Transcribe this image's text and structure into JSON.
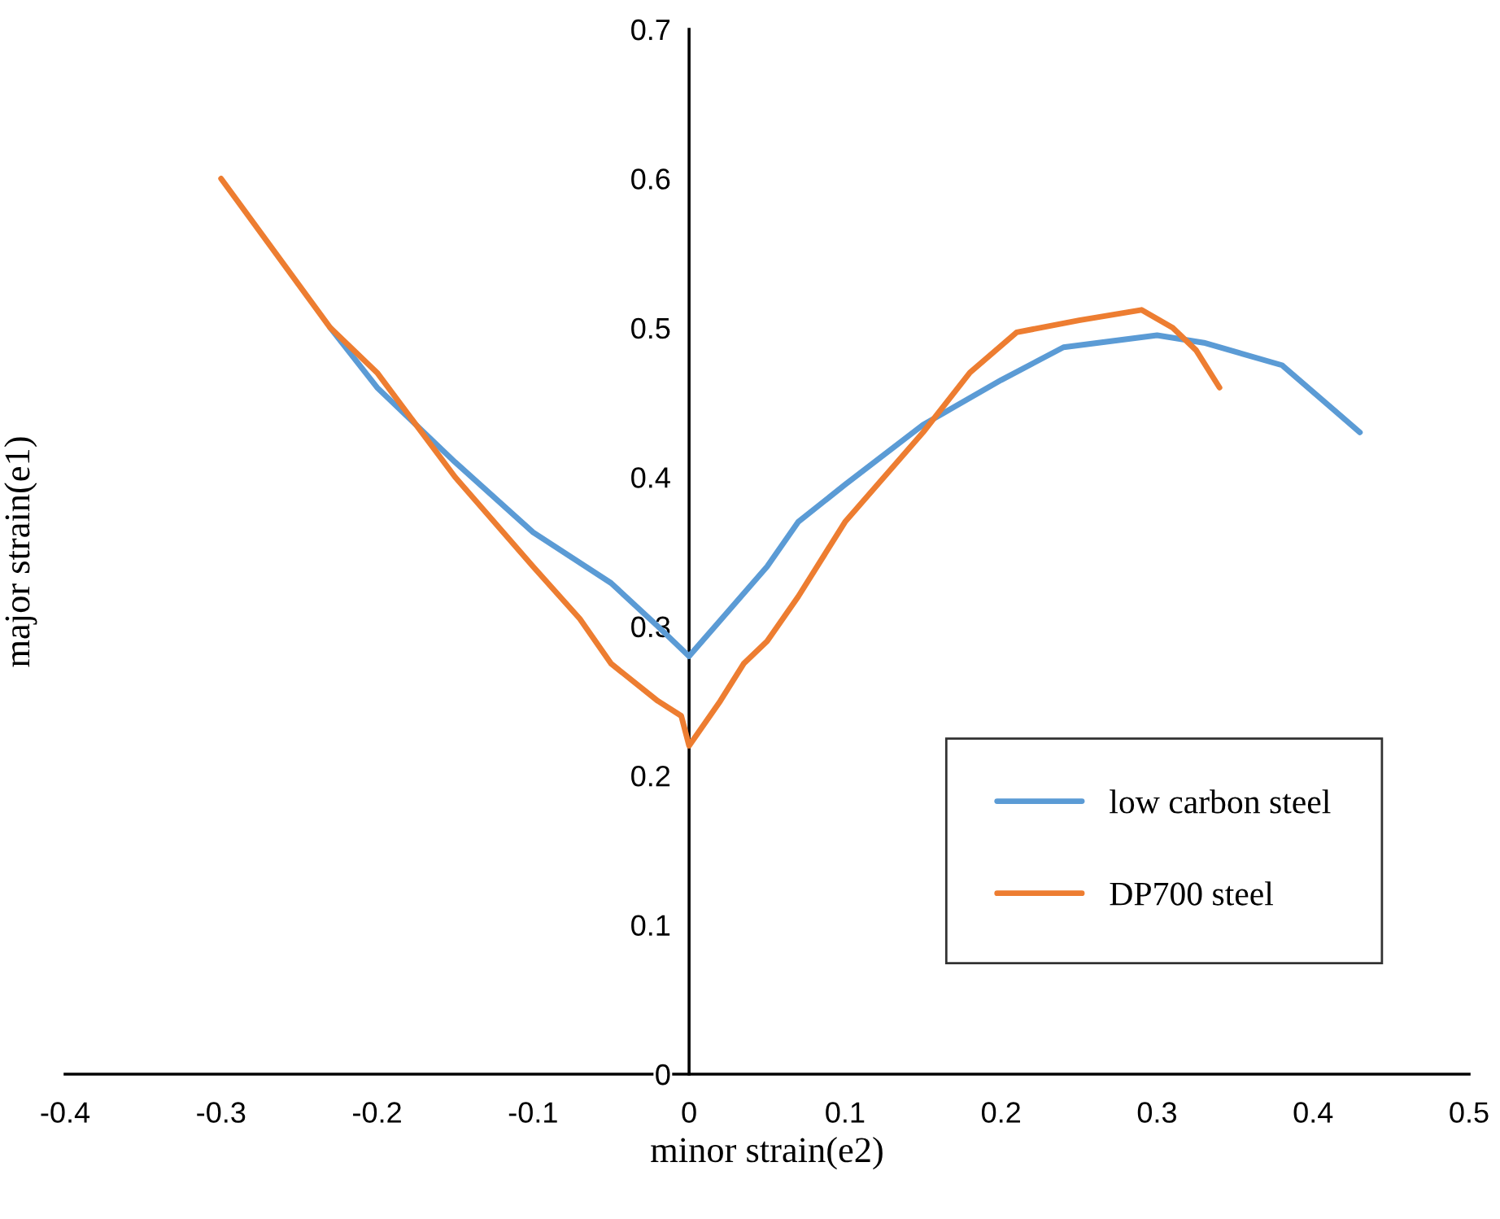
{
  "chart_data": {
    "type": "line",
    "xlabel": "minor strain(e2)",
    "ylabel": "major strain(e1)",
    "xlim": [
      -0.4,
      0.5
    ],
    "xticks": [
      -0.4,
      -0.3,
      -0.2,
      -0.1,
      0,
      0.1,
      0.2,
      0.3,
      0.4,
      0.5
    ],
    "ylim": [
      0,
      0.7
    ],
    "yticks": [
      0,
      0.1,
      0.2,
      0.3,
      0.4,
      0.5,
      0.6,
      0.7
    ],
    "grid": false,
    "legend": "lower right",
    "marker": "none",
    "line_style": "solid",
    "series": [
      {
        "name": "low carbon steel",
        "color": "#5b9bd5",
        "x": [
          -0.23,
          -0.2,
          -0.15,
          -0.1,
          -0.05,
          -0.02,
          0,
          0.05,
          0.07,
          0.1,
          0.15,
          0.17,
          0.2,
          0.24,
          0.3,
          0.33,
          0.38,
          0.43
        ],
        "values": [
          0.5,
          0.46,
          0.41,
          0.363,
          0.329,
          0.3,
          0.28,
          0.34,
          0.37,
          0.395,
          0.435,
          0.447,
          0.465,
          0.487,
          0.495,
          0.49,
          0.475,
          0.43
        ]
      },
      {
        "name": "DP700 steel",
        "color": "#ed7d31",
        "x": [
          -0.3,
          -0.23,
          -0.2,
          -0.15,
          -0.1,
          -0.07,
          -0.05,
          -0.02,
          -0.005,
          0,
          0.02,
          0.035,
          0.05,
          0.07,
          0.1,
          0.15,
          0.18,
          0.21,
          0.25,
          0.29,
          0.31,
          0.325,
          0.34
        ],
        "values": [
          0.6,
          0.5,
          0.47,
          0.4,
          0.34,
          0.305,
          0.275,
          0.25,
          0.24,
          0.22,
          0.25,
          0.275,
          0.29,
          0.32,
          0.37,
          0.43,
          0.47,
          0.497,
          0.505,
          0.512,
          0.5,
          0.485,
          0.46
        ]
      }
    ]
  }
}
